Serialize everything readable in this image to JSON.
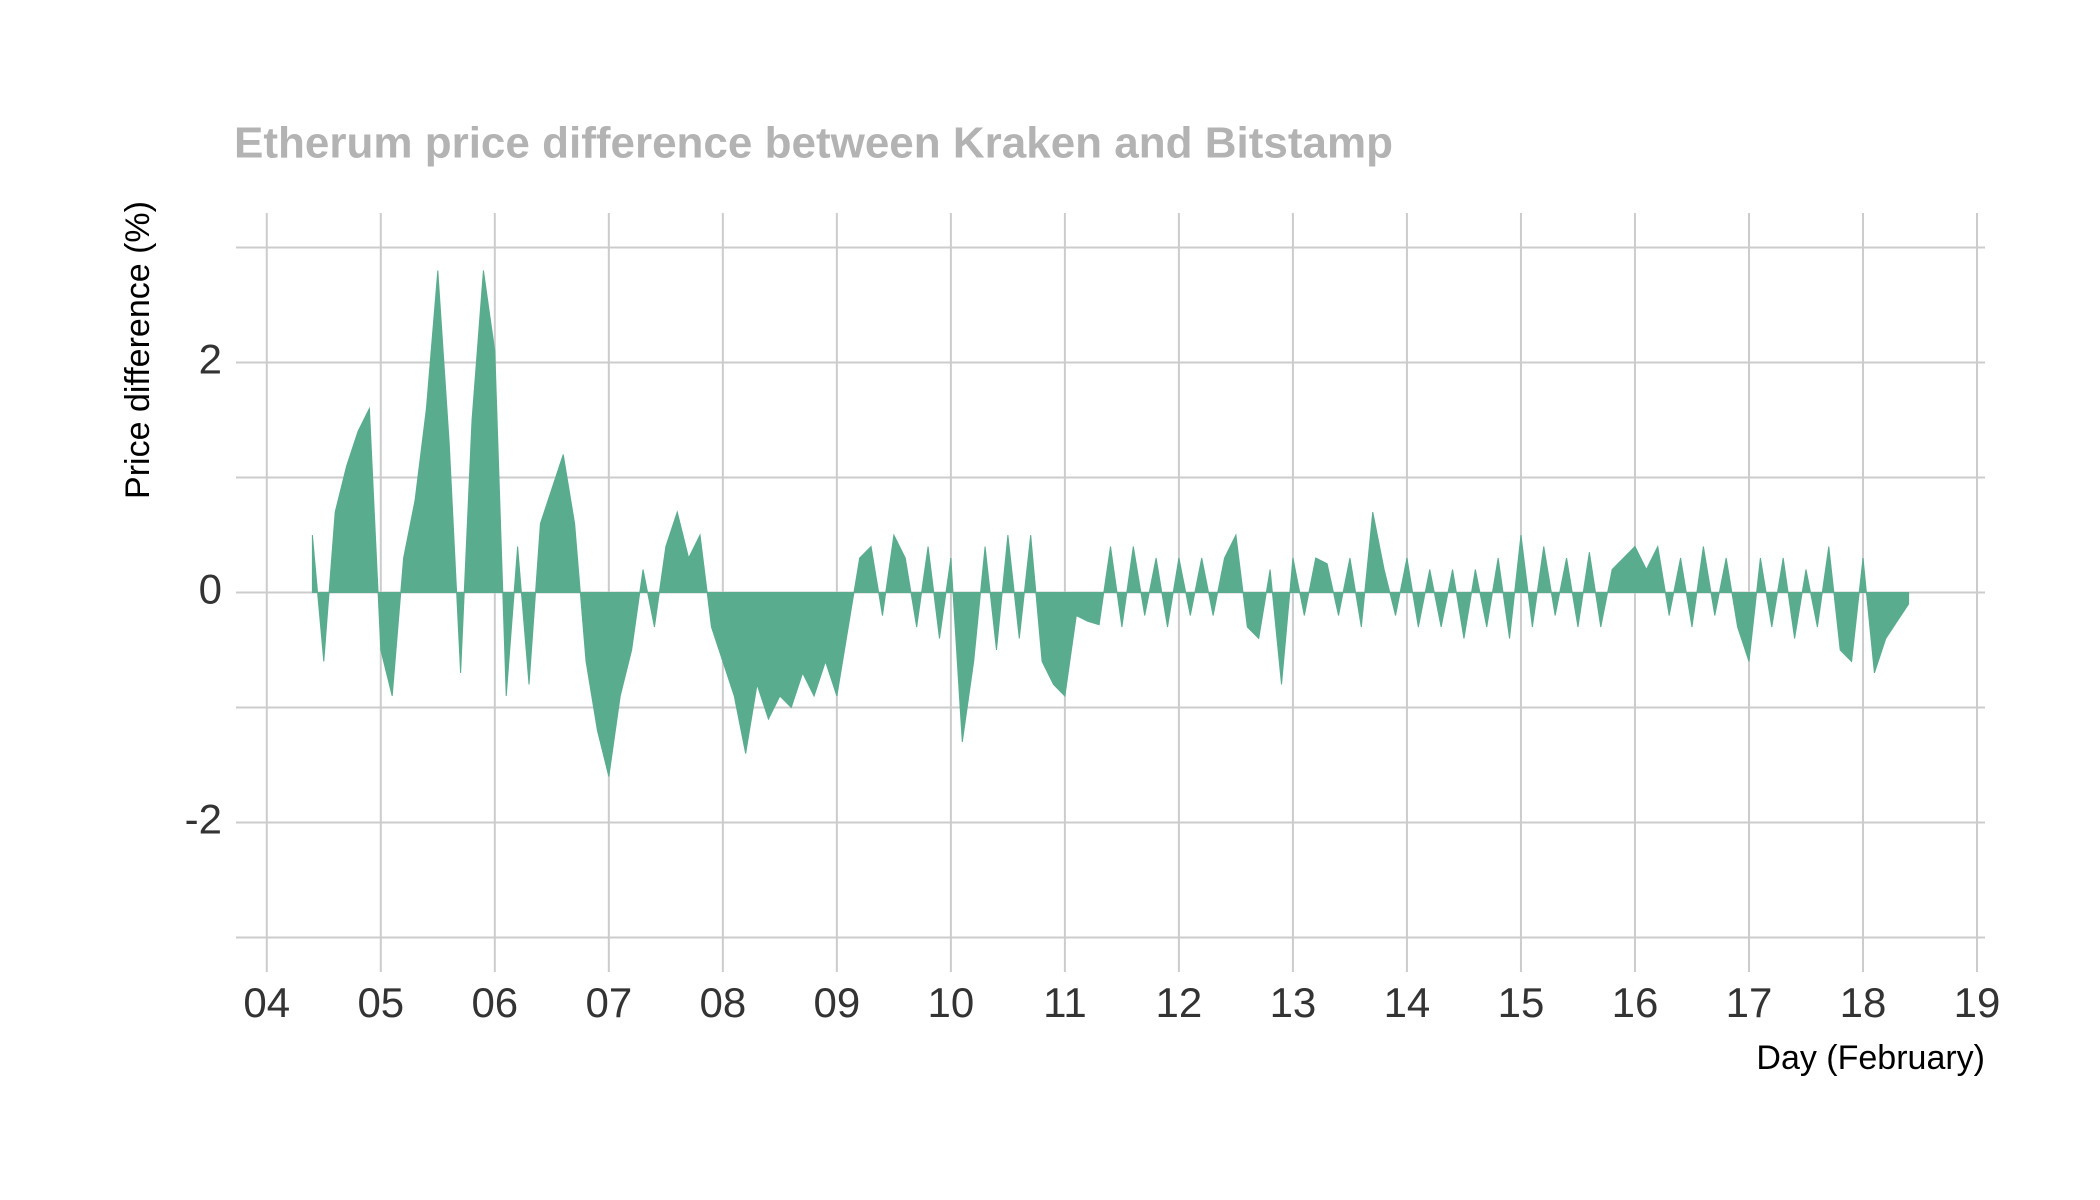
{
  "chart_data": {
    "type": "area",
    "title": "Etherum price difference between Kraken and Bitstamp",
    "x_label": "Day (February)",
    "y_label": "Price difference (%)",
    "color": "#5aac8e",
    "grid": true,
    "xlim": [
      3.73,
      19.07
    ],
    "ylim": [
      -3.3,
      3.3
    ],
    "xticks": [
      {
        "value": 4,
        "label": "04"
      },
      {
        "value": 5,
        "label": "05"
      },
      {
        "value": 6,
        "label": "06"
      },
      {
        "value": 7,
        "label": "07"
      },
      {
        "value": 8,
        "label": "08"
      },
      {
        "value": 9,
        "label": "09"
      },
      {
        "value": 10,
        "label": "10"
      },
      {
        "value": 11,
        "label": "11"
      },
      {
        "value": 12,
        "label": "12"
      },
      {
        "value": 13,
        "label": "13"
      },
      {
        "value": 14,
        "label": "14"
      },
      {
        "value": 15,
        "label": "15"
      },
      {
        "value": 16,
        "label": "16"
      },
      {
        "value": 17,
        "label": "17"
      },
      {
        "value": 18,
        "label": "18"
      },
      {
        "value": 19,
        "label": "19"
      }
    ],
    "yticks": [
      -2,
      0,
      2
    ],
    "minor_yticks": [
      -3,
      -1,
      1,
      3
    ],
    "x": [
      4.4,
      4.5,
      4.6,
      4.7,
      4.8,
      4.9,
      5.0,
      5.1,
      5.2,
      5.3,
      5.4,
      5.5,
      5.6,
      5.7,
      5.8,
      5.9,
      6.0,
      6.1,
      6.2,
      6.3,
      6.4,
      6.5,
      6.6,
      6.7,
      6.8,
      6.9,
      7.0,
      7.1,
      7.2,
      7.3,
      7.4,
      7.5,
      7.6,
      7.7,
      7.8,
      7.9,
      8.0,
      8.1,
      8.2,
      8.3,
      8.4,
      8.5,
      8.6,
      8.7,
      8.8,
      8.9,
      9.0,
      9.1,
      9.2,
      9.3,
      9.4,
      9.5,
      9.6,
      9.7,
      9.8,
      9.9,
      10.0,
      10.1,
      10.2,
      10.3,
      10.4,
      10.5,
      10.6,
      10.7,
      10.8,
      10.9,
      11.0,
      11.1,
      11.2,
      11.3,
      11.4,
      11.5,
      11.6,
      11.7,
      11.8,
      11.9,
      12.0,
      12.1,
      12.2,
      12.3,
      12.4,
      12.5,
      12.6,
      12.7,
      12.8,
      12.9,
      13.0,
      13.1,
      13.2,
      13.3,
      13.4,
      13.5,
      13.6,
      13.7,
      13.8,
      13.9,
      14.0,
      14.1,
      14.2,
      14.3,
      14.4,
      14.5,
      14.6,
      14.7,
      14.8,
      14.9,
      15.0,
      15.1,
      15.2,
      15.3,
      15.4,
      15.5,
      15.6,
      15.7,
      15.8,
      15.9,
      16.0,
      16.1,
      16.2,
      16.3,
      16.4,
      16.5,
      16.6,
      16.7,
      16.8,
      16.9,
      17.0,
      17.1,
      17.2,
      17.3,
      17.4,
      17.5,
      17.6,
      17.7,
      17.8,
      17.9,
      18.0,
      18.1,
      18.2,
      18.3,
      18.4
    ],
    "values": [
      0.5,
      -0.6,
      0.7,
      1.1,
      1.4,
      1.6,
      -0.5,
      -0.9,
      0.3,
      0.8,
      1.6,
      2.8,
      1.3,
      -0.7,
      1.5,
      2.8,
      2.1,
      -0.9,
      0.4,
      -0.8,
      0.6,
      0.9,
      1.2,
      0.6,
      -0.6,
      -1.2,
      -1.6,
      -0.9,
      -0.5,
      0.2,
      -0.3,
      0.4,
      0.7,
      0.3,
      0.5,
      -0.3,
      -0.6,
      -0.9,
      -1.4,
      -0.8,
      -1.1,
      -0.9,
      -1.0,
      -0.7,
      -0.9,
      -0.6,
      -0.9,
      -0.3,
      0.3,
      0.4,
      -0.2,
      0.5,
      0.3,
      -0.3,
      0.4,
      -0.4,
      0.3,
      -1.3,
      -0.6,
      0.4,
      -0.5,
      0.5,
      -0.4,
      0.5,
      -0.6,
      -0.8,
      -0.9,
      -0.2,
      -0.25,
      -0.28,
      0.4,
      -0.3,
      0.4,
      -0.2,
      0.3,
      -0.3,
      0.3,
      -0.2,
      0.3,
      -0.2,
      0.3,
      0.5,
      -0.3,
      -0.4,
      0.2,
      -0.8,
      0.3,
      -0.2,
      0.3,
      0.25,
      -0.2,
      0.3,
      -0.3,
      0.7,
      0.2,
      -0.2,
      0.3,
      -0.3,
      0.2,
      -0.3,
      0.2,
      -0.4,
      0.2,
      -0.3,
      0.3,
      -0.4,
      0.5,
      -0.3,
      0.4,
      -0.2,
      0.3,
      -0.3,
      0.35,
      -0.3,
      0.2,
      0.3,
      0.4,
      0.2,
      0.4,
      -0.2,
      0.3,
      -0.3,
      0.4,
      -0.2,
      0.3,
      -0.3,
      -0.6,
      0.3,
      -0.3,
      0.3,
      -0.4,
      0.2,
      -0.3,
      0.4,
      -0.5,
      -0.6,
      0.3,
      -0.7,
      -0.4,
      -0.25,
      -0.1
    ]
  }
}
